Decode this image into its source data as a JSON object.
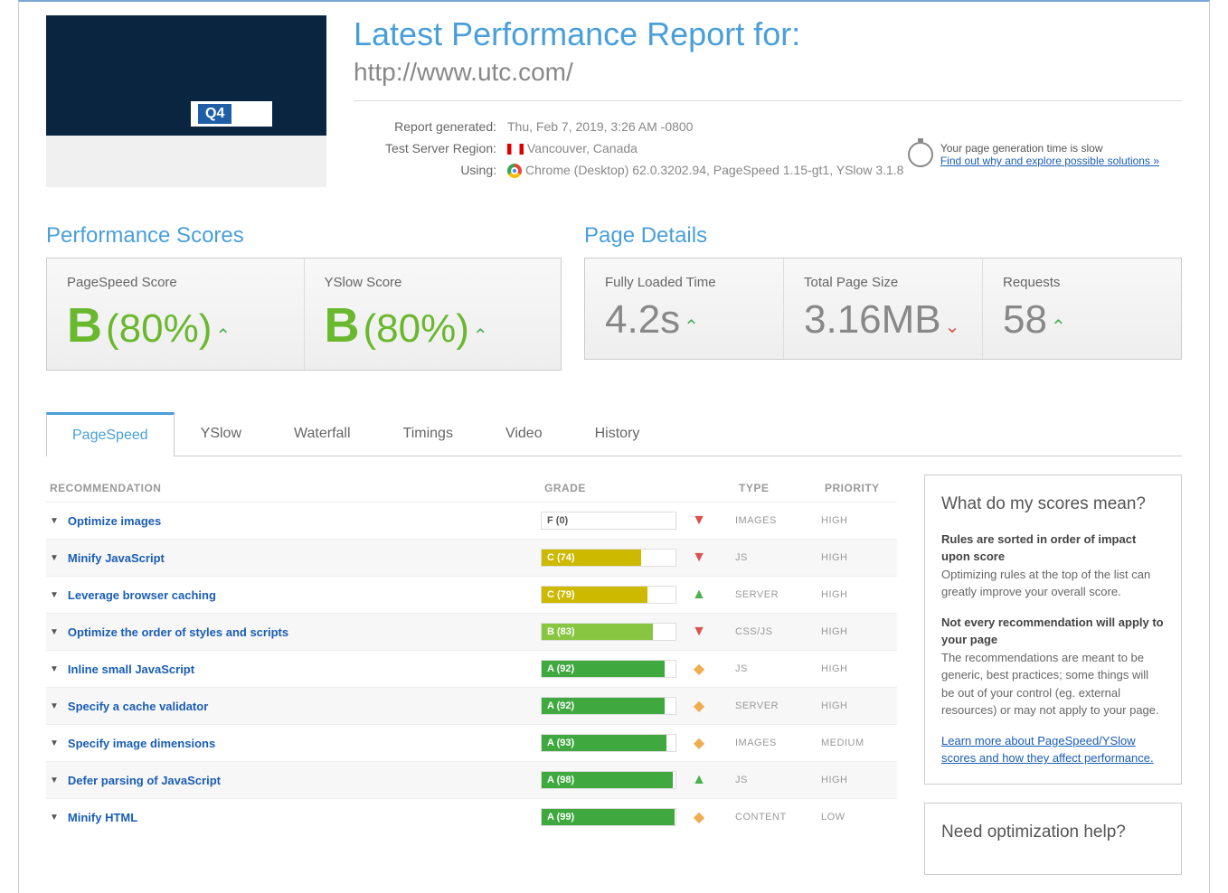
{
  "header": {
    "title": "Latest Performance Report for:",
    "url": "http://www.utc.com/",
    "generated_label": "Report generated:",
    "generated_value": "Thu, Feb 7, 2019, 3:26 AM -0800",
    "region_label": "Test Server Region:",
    "region_value": "Vancouver, Canada",
    "using_label": "Using:",
    "using_value": "Chrome (Desktop) 62.0.3202.94, PageSpeed 1.15-gt1, YSlow 3.1.8",
    "notice_text": "Your page generation time is slow",
    "notice_link": "Find out why and explore possible solutions »"
  },
  "perf_scores": {
    "title": "Performance Scores",
    "pagespeed": {
      "label": "PageSpeed Score",
      "grade": "B",
      "value": "(80%)",
      "trend": "up",
      "color": "#6ab82e"
    },
    "yslow": {
      "label": "YSlow Score",
      "grade": "B",
      "value": "(80%)",
      "trend": "up",
      "color": "#6ab82e"
    }
  },
  "page_details": {
    "title": "Page Details",
    "loaded": {
      "label": "Fully Loaded Time",
      "value": "4.2s",
      "trend": "up",
      "trend_color": "#4caf50"
    },
    "size": {
      "label": "Total Page Size",
      "value": "3.16MB",
      "trend": "down",
      "trend_color": "#d9534f"
    },
    "requests": {
      "label": "Requests",
      "value": "58",
      "trend": "up",
      "trend_color": "#4caf50"
    }
  },
  "tabs": [
    "PageSpeed",
    "YSlow",
    "Waterfall",
    "Timings",
    "Video",
    "History"
  ],
  "active_tab": 0,
  "table": {
    "headers": {
      "rec": "RECOMMENDATION",
      "grade": "GRADE",
      "type": "TYPE",
      "priority": "PRIORITY"
    },
    "rows": [
      {
        "name": "Optimize images",
        "grade": "F (0)",
        "pct": 0,
        "color": "#fff",
        "text_outside": true,
        "trend": "down",
        "type": "IMAGES",
        "priority": "HIGH"
      },
      {
        "name": "Minify JavaScript",
        "grade": "C (74)",
        "pct": 74,
        "color": "#cdb900",
        "trend": "down",
        "type": "JS",
        "priority": "HIGH"
      },
      {
        "name": "Leverage browser caching",
        "grade": "C (79)",
        "pct": 79,
        "color": "#cdb900",
        "trend": "up",
        "type": "SERVER",
        "priority": "HIGH"
      },
      {
        "name": "Optimize the order of styles and scripts",
        "grade": "B (83)",
        "pct": 83,
        "color": "#88c540",
        "trend": "down",
        "type": "CSS/JS",
        "priority": "HIGH"
      },
      {
        "name": "Inline small JavaScript",
        "grade": "A (92)",
        "pct": 92,
        "color": "#3fa83f",
        "trend": "neutral",
        "type": "JS",
        "priority": "HIGH"
      },
      {
        "name": "Specify a cache validator",
        "grade": "A (92)",
        "pct": 92,
        "color": "#3fa83f",
        "trend": "neutral",
        "type": "SERVER",
        "priority": "HIGH"
      },
      {
        "name": "Specify image dimensions",
        "grade": "A (93)",
        "pct": 93,
        "color": "#3fa83f",
        "trend": "neutral",
        "type": "IMAGES",
        "priority": "MEDIUM"
      },
      {
        "name": "Defer parsing of JavaScript",
        "grade": "A (98)",
        "pct": 98,
        "color": "#3fa83f",
        "trend": "up",
        "type": "JS",
        "priority": "HIGH"
      },
      {
        "name": "Minify HTML",
        "grade": "A (99)",
        "pct": 99,
        "color": "#3fa83f",
        "trend": "neutral",
        "type": "CONTENT",
        "priority": "LOW"
      }
    ]
  },
  "sidebar": {
    "scores_title": "What do my scores mean?",
    "scores_b1": "Rules are sorted in order of impact upon score",
    "scores_p1": "Optimizing rules at the top of the list can greatly improve your overall score.",
    "scores_b2": "Not every recommendation will apply to your page",
    "scores_p2": "The recommendations are meant to be generic, best practices; some things will be out of your control (eg. external resources) or may not apply to your page.",
    "scores_link": "Learn more about PageSpeed/YSlow scores and how they affect performance.",
    "help_title": "Need optimization help?"
  }
}
